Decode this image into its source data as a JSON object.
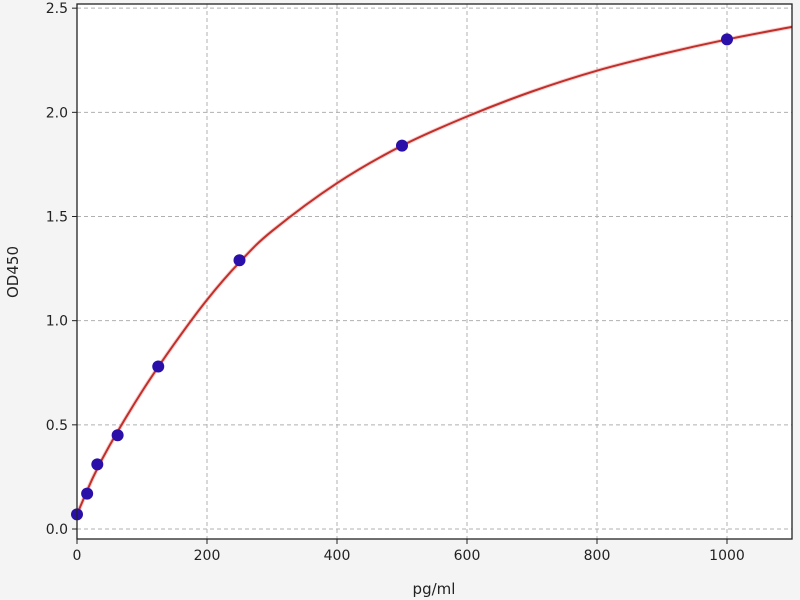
{
  "chart_data": {
    "type": "scatter",
    "title": "",
    "xlabel": "pg/ml",
    "ylabel": "OD450",
    "xlim": [
      0,
      1100
    ],
    "ylim": [
      -0.048,
      2.52
    ],
    "xticks": [
      0,
      200,
      400,
      600,
      800,
      1000
    ],
    "yticks": [
      0.0,
      0.5,
      1.0,
      1.5,
      2.0,
      2.5
    ],
    "xtick_labels": [
      "0",
      "200",
      "400",
      "600",
      "800",
      "1000"
    ],
    "ytick_labels": [
      "0.0",
      "0.5",
      "1.0",
      "1.5",
      "2.0",
      "2.5"
    ],
    "grid": true,
    "points": {
      "x": [
        0,
        15.6,
        31.25,
        62.5,
        125,
        250,
        500,
        1000
      ],
      "y": [
        0.07,
        0.17,
        0.31,
        0.45,
        0.78,
        1.29,
        1.84,
        2.35
      ],
      "color": "#2a10a8"
    },
    "fit_curve": {
      "x": [
        0,
        25,
        50,
        100,
        150,
        200,
        250,
        300,
        400,
        500,
        600,
        700,
        800,
        900,
        1000,
        1100
      ],
      "y": [
        0.07,
        0.25,
        0.4,
        0.66,
        0.89,
        1.1,
        1.28,
        1.43,
        1.66,
        1.84,
        1.98,
        2.1,
        2.2,
        2.28,
        2.35,
        2.41
      ],
      "color": "#c0302a"
    }
  }
}
